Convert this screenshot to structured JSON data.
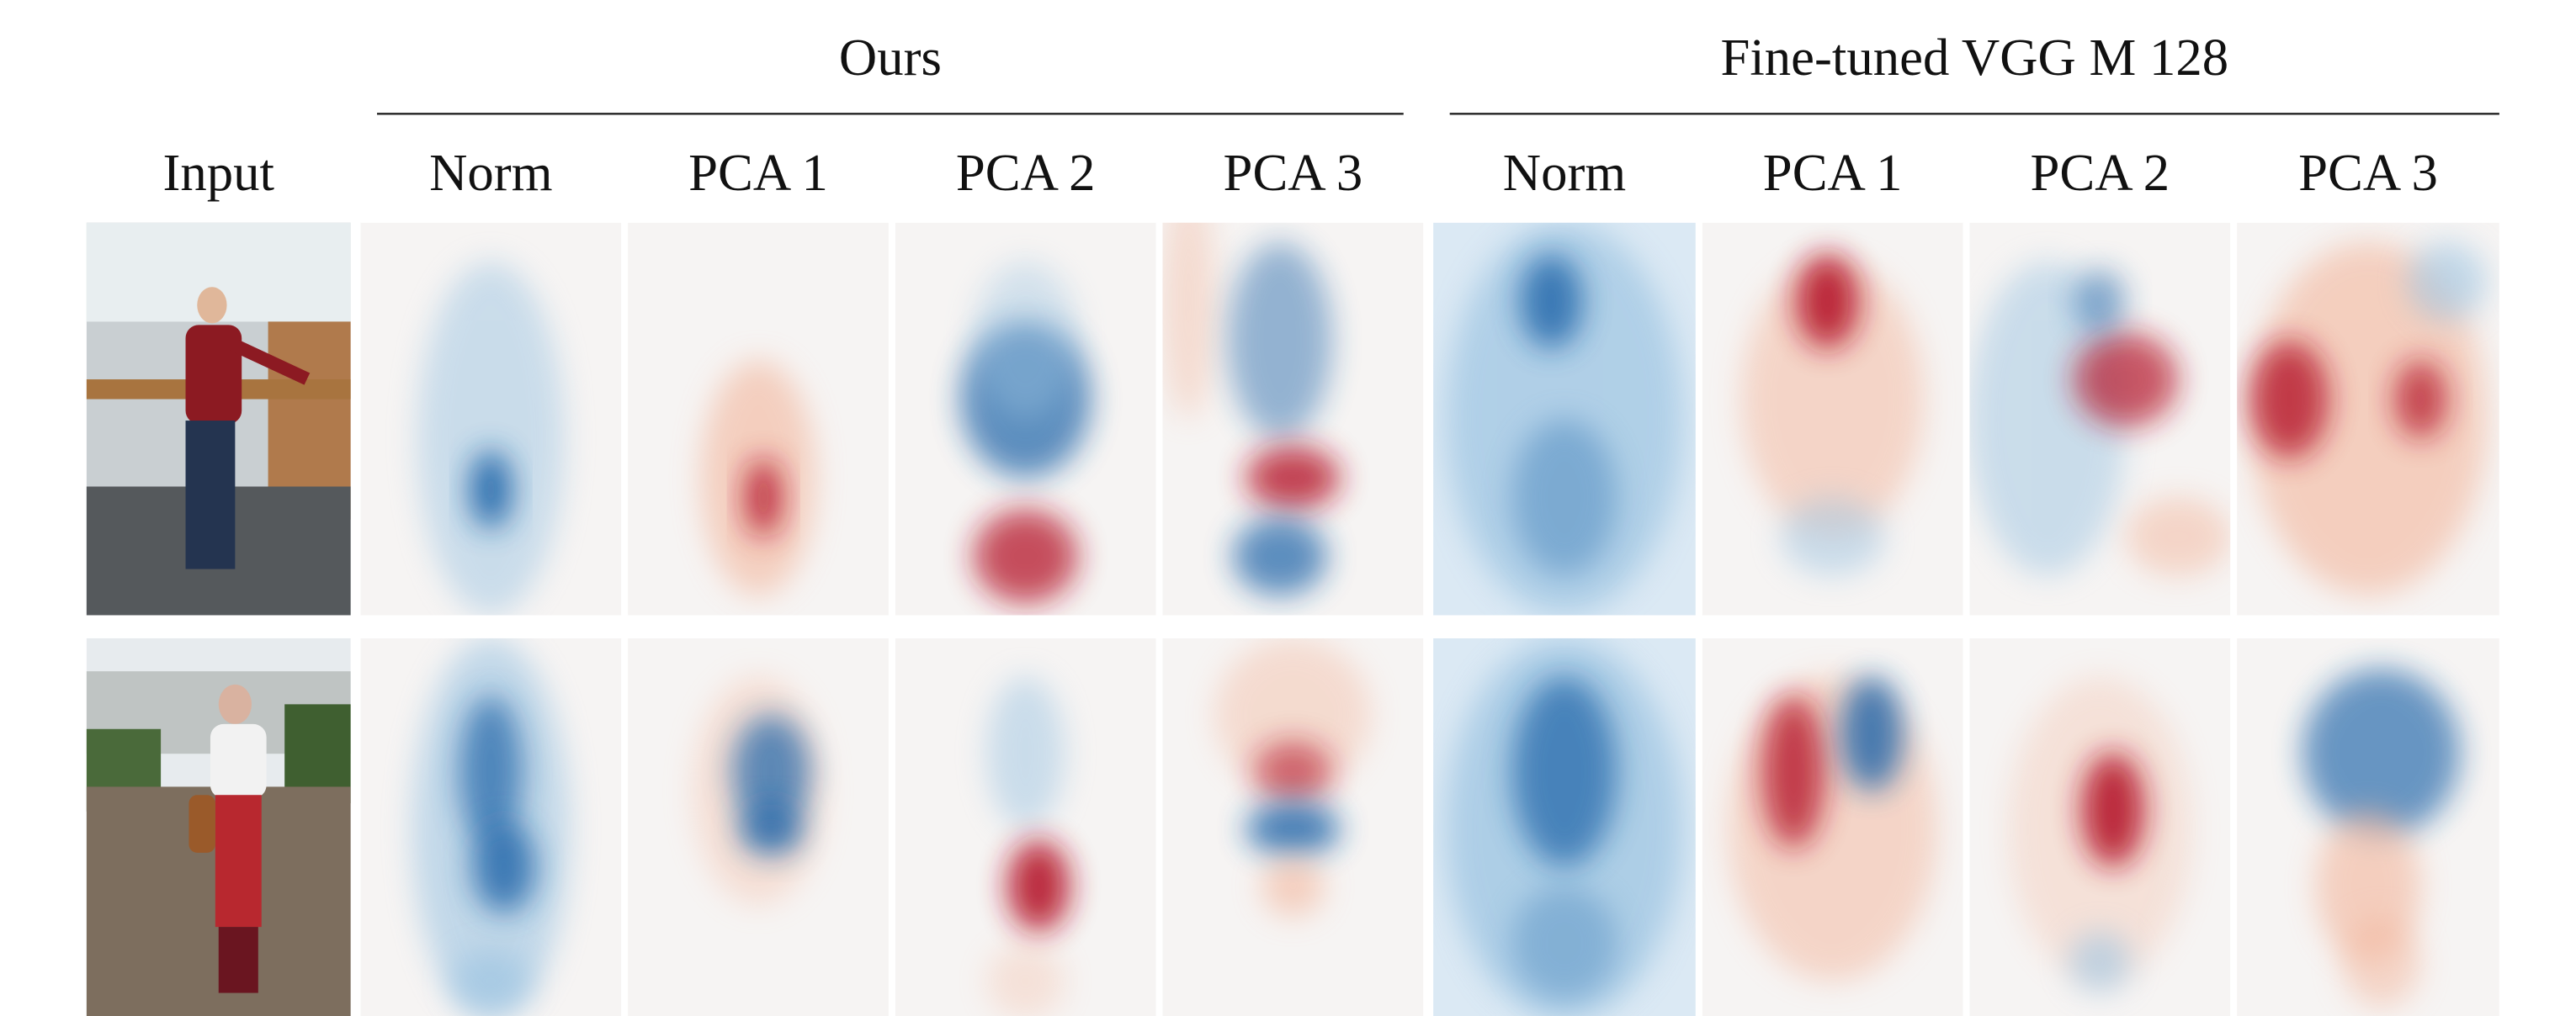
{
  "input_label": "Input",
  "groups": [
    {
      "title": "Ours",
      "columns": [
        "Norm",
        "PCA 1",
        "PCA 2",
        "PCA 3"
      ]
    },
    {
      "title": "Fine-tuned VGG M 128",
      "columns": [
        "Norm",
        "PCA 1",
        "PCA 2",
        "PCA 3"
      ]
    }
  ]
}
